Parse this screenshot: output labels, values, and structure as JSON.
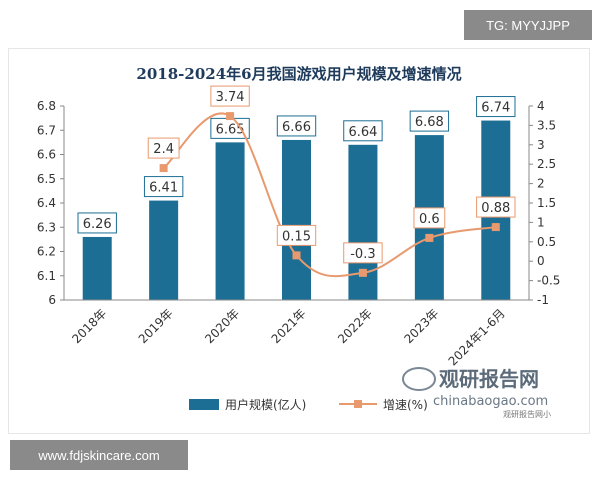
{
  "overlays": {
    "top_tag": "TG: MYYJJPP",
    "bottom_tag": "www.fdjskincare.com"
  },
  "watermark": {
    "brand": "观研报告网",
    "domain": "chinabaogao.com",
    "small_text": "观研报告网小"
  },
  "colors": {
    "bar": "#1d6e94",
    "bar_label_border": "#1d6e94",
    "line": "#e8996e",
    "marker": "#e8996e",
    "title": "#1f3b5c"
  },
  "chart_data": {
    "type": "bar",
    "title": "2018-2024年6月我国游戏用户规模及增速情况",
    "categories": [
      "2018年",
      "2019年",
      "2020年",
      "2021年",
      "2022年",
      "2023年",
      "2024年1-6月"
    ],
    "series": [
      {
        "name": "用户规模(亿人)",
        "type": "bar",
        "axis": "left",
        "values": [
          6.26,
          6.41,
          6.65,
          6.66,
          6.64,
          6.68,
          6.74
        ],
        "labels": [
          "6.26",
          "6.41",
          "6.65",
          "6.66",
          "6.64",
          "6.68",
          "6.74"
        ]
      },
      {
        "name": "增速(%)",
        "type": "line",
        "axis": "right",
        "values": [
          null,
          2.4,
          3.74,
          0.15,
          -0.3,
          0.6,
          0.88
        ],
        "labels": [
          "",
          "2.4",
          "3.74",
          "0.15",
          "-0.3",
          "0.6",
          "0.88"
        ]
      }
    ],
    "y_left": {
      "lim": [
        6,
        6.8
      ],
      "ticks": [
        "6",
        "6.1",
        "6.2",
        "6.3",
        "6.4",
        "6.5",
        "6.6",
        "6.7",
        "6.8"
      ]
    },
    "y_right": {
      "lim": [
        -1,
        4
      ],
      "ticks": [
        "-1",
        "-0.5",
        "0",
        "0.5",
        "1",
        "1.5",
        "2",
        "2.5",
        "3",
        "3.5",
        "4"
      ]
    },
    "grid": false,
    "legend": "bottom-center"
  }
}
